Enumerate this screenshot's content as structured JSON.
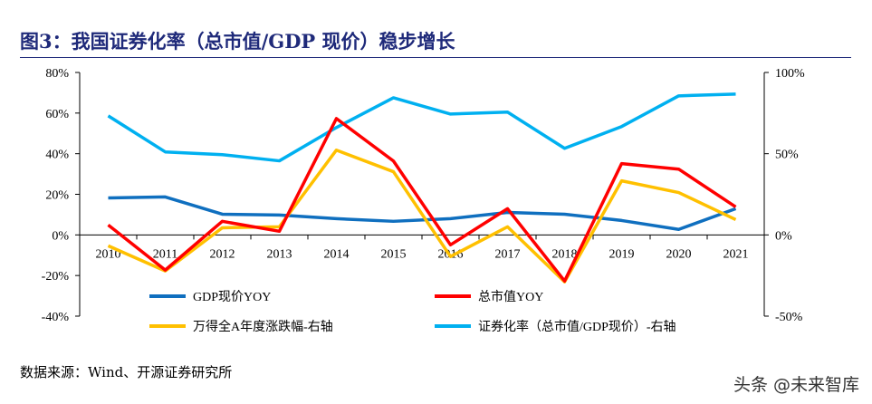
{
  "title": "图3：我国证券化率（总市值/GDP 现价）稳步增长",
  "source": "数据来源：Wind、开源证券研究所",
  "watermark": "头条 @未来智库",
  "chart_data": {
    "type": "line",
    "categories": [
      "2010",
      "2011",
      "2012",
      "2013",
      "2014",
      "2015",
      "2016",
      "2017",
      "2018",
      "2019",
      "2020",
      "2021"
    ],
    "y_left": {
      "range": [
        -40,
        80
      ],
      "ticks": [
        "-40%",
        "-20%",
        "0%",
        "20%",
        "40%",
        "60%",
        "80%"
      ],
      "tick_values": [
        -40,
        -20,
        0,
        20,
        40,
        60,
        80
      ]
    },
    "y_right": {
      "range": [
        -50,
        100
      ],
      "ticks": [
        "-50%",
        "0%",
        "50%",
        "100%"
      ],
      "tick_values": [
        -50,
        0,
        50,
        100
      ]
    },
    "grid": false,
    "legend_placement": "bottom",
    "series": [
      {
        "name": "GDP现价YOY",
        "axis": "left",
        "color": "#0f6fbf",
        "values": [
          18.2,
          18.7,
          10.2,
          9.8,
          8.0,
          6.7,
          8.0,
          11.1,
          10.2,
          7.1,
          2.7,
          12.9
        ]
      },
      {
        "name": "总市值YOY",
        "axis": "left",
        "color": "#ff0000",
        "values": [
          4.9,
          -17.3,
          6.7,
          1.8,
          57.3,
          36.4,
          -4.9,
          12.9,
          -22.7,
          35.1,
          32.4,
          13.8
        ]
      },
      {
        "name": "万得全A年度涨跌幅-右轴",
        "axis": "right",
        "color": "#ffc000",
        "values": [
          -6.7,
          -22.2,
          4.4,
          5.0,
          52.2,
          38.9,
          -13.3,
          5.0,
          -28.9,
          33.3,
          26.1,
          9.4
        ]
      },
      {
        "name": "证券化率（总市值/GDP现价）-右轴",
        "axis": "right",
        "color": "#00b0f0",
        "values": [
          73.3,
          51.1,
          49.4,
          45.6,
          66.1,
          84.4,
          74.4,
          75.6,
          53.3,
          66.7,
          85.6,
          86.7
        ]
      }
    ]
  }
}
